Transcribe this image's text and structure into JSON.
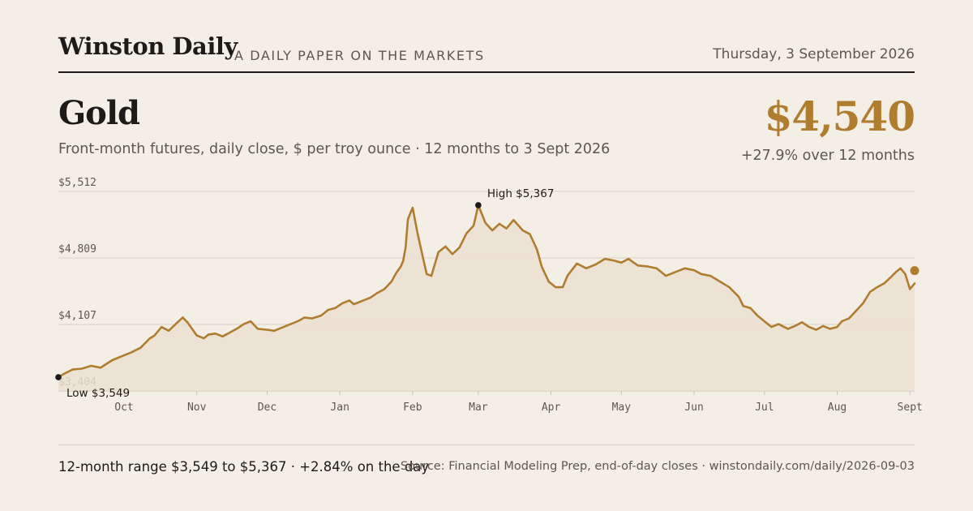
{
  "masthead": {
    "brand": "Winston Daily",
    "tagline": "A DAILY PAPER ON THE MARKETS",
    "date": "Thursday, 3 September 2026"
  },
  "headline": {
    "title": "Gold",
    "subtitle": "Front-month futures, daily close, $ per troy ounce · 12 months to 3 Sept 2026",
    "price": "$4,540",
    "change": "+27.9% over 12 months"
  },
  "footer": {
    "range": "12-month range $3,549 to $5,367 · +2.84% on the day",
    "source": "Source: Financial Modeling Prep, end-of-day closes · winstondaily.com/daily/2026-09-03"
  },
  "colors": {
    "line": "#b07d2f",
    "fill": "#ebe0d0",
    "grid": "#d9d2c6",
    "background": "#f4efe6"
  },
  "chart_data": {
    "type": "area",
    "ylim": [
      3404,
      5512
    ],
    "y_ticks": [
      {
        "value": 5512,
        "label": "$5,512"
      },
      {
        "value": 4809,
        "label": "$4,809"
      },
      {
        "value": 4107,
        "label": "$4,107"
      },
      {
        "value": 3404,
        "label": "$3,404"
      }
    ],
    "x_ticks": [
      {
        "date": "2025-10-01",
        "label": "Oct"
      },
      {
        "date": "2025-11-01",
        "label": "Nov"
      },
      {
        "date": "2025-12-01",
        "label": "Dec"
      },
      {
        "date": "2026-01-01",
        "label": "Jan"
      },
      {
        "date": "2026-02-01",
        "label": "Feb"
      },
      {
        "date": "2026-03-01",
        "label": "Mar"
      },
      {
        "date": "2026-04-01",
        "label": "Apr"
      },
      {
        "date": "2026-05-01",
        "label": "May"
      },
      {
        "date": "2026-06-01",
        "label": "Jun"
      },
      {
        "date": "2026-07-01",
        "label": "Jul"
      },
      {
        "date": "2026-08-01",
        "label": "Aug"
      },
      {
        "date": "2026-09-01",
        "label": "Sept"
      }
    ],
    "annotations": {
      "high": {
        "label": "High $5,367",
        "date": "2026-03-01",
        "value": 5367
      },
      "low": {
        "label": "Low $3,549",
        "date": "2025-09-03",
        "value": 3549
      }
    },
    "series": [
      {
        "points": [
          [
            "2025-09-03",
            3549
          ],
          [
            "2025-09-05",
            3580
          ],
          [
            "2025-09-09",
            3630
          ],
          [
            "2025-09-13",
            3640
          ],
          [
            "2025-09-17",
            3670
          ],
          [
            "2025-09-21",
            3650
          ],
          [
            "2025-09-26",
            3730
          ],
          [
            "2025-10-01",
            3780
          ],
          [
            "2025-10-04",
            3810
          ],
          [
            "2025-10-08",
            3860
          ],
          [
            "2025-10-12",
            3960
          ],
          [
            "2025-10-14",
            3990
          ],
          [
            "2025-10-17",
            4080
          ],
          [
            "2025-10-20",
            4040
          ],
          [
            "2025-10-23",
            4110
          ],
          [
            "2025-10-26",
            4180
          ],
          [
            "2025-10-28",
            4130
          ],
          [
            "2025-11-01",
            3990
          ],
          [
            "2025-11-04",
            3960
          ],
          [
            "2025-11-06",
            4000
          ],
          [
            "2025-11-09",
            4010
          ],
          [
            "2025-11-12",
            3980
          ],
          [
            "2025-11-15",
            4020
          ],
          [
            "2025-11-18",
            4060
          ],
          [
            "2025-11-21",
            4110
          ],
          [
            "2025-11-24",
            4140
          ],
          [
            "2025-11-27",
            4060
          ],
          [
            "2025-12-01",
            4050
          ],
          [
            "2025-12-04",
            4040
          ],
          [
            "2025-12-08",
            4080
          ],
          [
            "2025-12-12",
            4120
          ],
          [
            "2025-12-14",
            4140
          ],
          [
            "2025-12-17",
            4180
          ],
          [
            "2025-12-20",
            4170
          ],
          [
            "2025-12-24",
            4200
          ],
          [
            "2025-12-27",
            4260
          ],
          [
            "2025-12-30",
            4280
          ],
          [
            "2026-01-02",
            4330
          ],
          [
            "2026-01-05",
            4360
          ],
          [
            "2026-01-07",
            4320
          ],
          [
            "2026-01-10",
            4350
          ],
          [
            "2026-01-14",
            4390
          ],
          [
            "2026-01-17",
            4440
          ],
          [
            "2026-01-20",
            4480
          ],
          [
            "2026-01-23",
            4560
          ],
          [
            "2026-01-25",
            4650
          ],
          [
            "2026-01-27",
            4720
          ],
          [
            "2026-01-28",
            4780
          ],
          [
            "2026-01-29",
            4920
          ],
          [
            "2026-01-30",
            5220
          ],
          [
            "2026-02-01",
            5340
          ],
          [
            "2026-02-03",
            5080
          ],
          [
            "2026-02-05",
            4860
          ],
          [
            "2026-02-07",
            4640
          ],
          [
            "2026-02-09",
            4620
          ],
          [
            "2026-02-12",
            4870
          ],
          [
            "2026-02-15",
            4930
          ],
          [
            "2026-02-18",
            4850
          ],
          [
            "2026-02-21",
            4920
          ],
          [
            "2026-02-24",
            5070
          ],
          [
            "2026-02-27",
            5150
          ],
          [
            "2026-03-01",
            5367
          ],
          [
            "2026-03-04",
            5180
          ],
          [
            "2026-03-07",
            5100
          ],
          [
            "2026-03-10",
            5170
          ],
          [
            "2026-03-13",
            5120
          ],
          [
            "2026-03-16",
            5210
          ],
          [
            "2026-03-20",
            5100
          ],
          [
            "2026-03-23",
            5060
          ],
          [
            "2026-03-26",
            4900
          ],
          [
            "2026-03-28",
            4720
          ],
          [
            "2026-03-31",
            4560
          ],
          [
            "2026-04-03",
            4500
          ],
          [
            "2026-04-06",
            4500
          ],
          [
            "2026-04-08",
            4620
          ],
          [
            "2026-04-12",
            4750
          ],
          [
            "2026-04-16",
            4700
          ],
          [
            "2026-04-20",
            4740
          ],
          [
            "2026-04-24",
            4800
          ],
          [
            "2026-04-28",
            4780
          ],
          [
            "2026-05-01",
            4760
          ],
          [
            "2026-05-04",
            4800
          ],
          [
            "2026-05-08",
            4730
          ],
          [
            "2026-05-12",
            4720
          ],
          [
            "2026-05-16",
            4700
          ],
          [
            "2026-05-20",
            4620
          ],
          [
            "2026-05-24",
            4660
          ],
          [
            "2026-05-28",
            4700
          ],
          [
            "2026-06-01",
            4680
          ],
          [
            "2026-06-04",
            4640
          ],
          [
            "2026-06-08",
            4620
          ],
          [
            "2026-06-12",
            4560
          ],
          [
            "2026-06-16",
            4500
          ],
          [
            "2026-06-20",
            4400
          ],
          [
            "2026-06-22",
            4300
          ],
          [
            "2026-06-25",
            4280
          ],
          [
            "2026-06-28",
            4200
          ],
          [
            "2026-07-01",
            4140
          ],
          [
            "2026-07-04",
            4080
          ],
          [
            "2026-07-07",
            4110
          ],
          [
            "2026-07-11",
            4060
          ],
          [
            "2026-07-14",
            4090
          ],
          [
            "2026-07-17",
            4130
          ],
          [
            "2026-07-20",
            4080
          ],
          [
            "2026-07-23",
            4050
          ],
          [
            "2026-07-26",
            4090
          ],
          [
            "2026-07-29",
            4060
          ],
          [
            "2026-08-01",
            4080
          ],
          [
            "2026-08-03",
            4140
          ],
          [
            "2026-08-06",
            4170
          ],
          [
            "2026-08-09",
            4250
          ],
          [
            "2026-08-12",
            4330
          ],
          [
            "2026-08-15",
            4450
          ],
          [
            "2026-08-18",
            4500
          ],
          [
            "2026-08-21",
            4540
          ],
          [
            "2026-08-24",
            4610
          ],
          [
            "2026-08-26",
            4660
          ],
          [
            "2026-08-28",
            4700
          ],
          [
            "2026-08-30",
            4640
          ],
          [
            "2026-09-01",
            4480
          ],
          [
            "2026-09-03",
            4540
          ]
        ]
      }
    ]
  }
}
